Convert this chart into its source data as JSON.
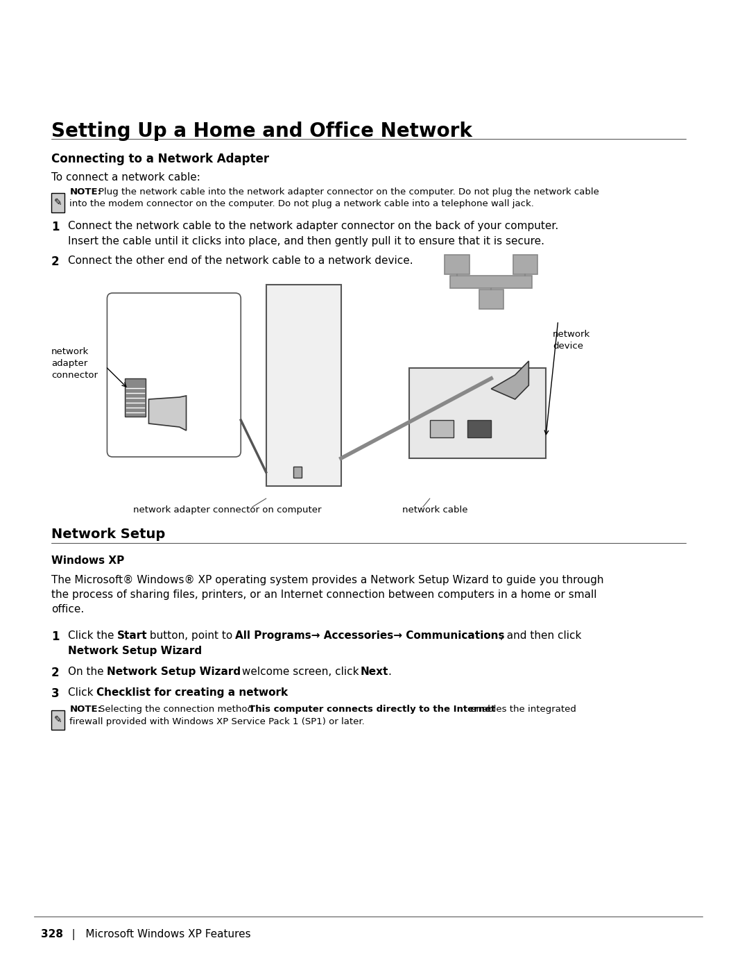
{
  "bg_color": "#ffffff",
  "title": "Setting Up a Home and Office Network",
  "section1_heading": "Connecting to a Network Adapter",
  "section1_intro": "To connect a network cable:",
  "note1_label": "NOTE:",
  "note1_text": " Plug the network cable into the network adapter connector on the computer. Do not plug the network cable\ninto the modem connector on the computer. Do not plug a network cable into a telephone wall jack.",
  "step1_num": "1",
  "step1_text": "Connect the network cable to the network adapter connector on the back of your computer.",
  "step1_sub": "Insert the cable until it clicks into place, and then gently pull it to ensure that it is secure.",
  "step2_num": "2",
  "step2_text": "Connect the other end of the network cable to a network device.",
  "label_adapter_connector": "network\nadapter\nconnector",
  "label_network_device": "network\ndevice",
  "label_bottom_left": "network adapter connector on computer",
  "label_bottom_right": "network cable",
  "section2_heading": "Network Setup",
  "section2_sub": "Windows XP",
  "section2_intro": "The Microsoft® Windows® XP operating system provides a Network Setup Wizard to guide you through\nthe process of sharing files, printers, or an Internet connection between computers in a home or small\noffice.",
  "ns_step1_num": "1",
  "ns_step1_text1": "Click the ",
  "ns_step1_bold1": "Start",
  "ns_step1_text2": " button, point to ",
  "ns_step1_bold2": "All Programs→ Accessories→ Communications",
  "ns_step1_text3": ", and then click\n",
  "ns_step1_bold3": "Network Setup Wizard",
  "ns_step1_text4": ".",
  "ns_step2_num": "2",
  "ns_step2_text1": "On the ",
  "ns_step2_bold1": "Network Setup Wizard",
  "ns_step2_text2": " welcome screen, click ",
  "ns_step2_bold2": "Next",
  "ns_step2_text3": ".",
  "ns_step3_num": "3",
  "ns_step3_text1": "Click ",
  "ns_step3_bold1": "Checklist for creating a network",
  "ns_step3_text2": ".",
  "note2_label": "NOTE:",
  "note2_text1": " Selecting the connection method ",
  "note2_bold1": "This computer connects directly to the Internet",
  "note2_text2": " enables the integrated\nfirewall provided with Windows XP Service Pack 1 (SP1) or later.",
  "footer_page": "328",
  "footer_sep": "   |   ",
  "footer_text": "Microsoft Windows XP Features"
}
